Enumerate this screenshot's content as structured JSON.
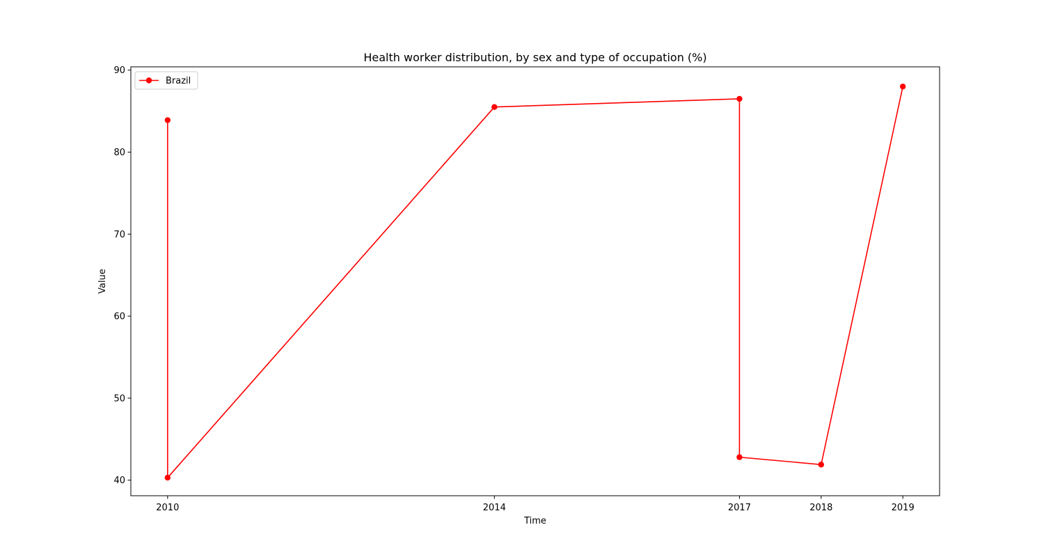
{
  "chart_data": {
    "type": "line",
    "title": "Health worker distribution, by sex and type of occupation (%)",
    "xlabel": "Time",
    "ylabel": "Value",
    "x_ticks": [
      2010,
      2014,
      2017,
      2018,
      2019
    ],
    "y_ticks": [
      40,
      50,
      60,
      70,
      80,
      90
    ],
    "xlim": [
      2009.55,
      2019.45
    ],
    "ylim": [
      38.1,
      90.4
    ],
    "grid": false,
    "legend_position": "top-left",
    "series": [
      {
        "name": "Brazil",
        "color": "#ff0000",
        "marker": "circle",
        "points": [
          {
            "x": 2010,
            "y": 83.9
          },
          {
            "x": 2010,
            "y": 40.3
          },
          {
            "x": 2014,
            "y": 85.5
          },
          {
            "x": 2017,
            "y": 86.5
          },
          {
            "x": 2017,
            "y": 42.8
          },
          {
            "x": 2018,
            "y": 41.9
          },
          {
            "x": 2019,
            "y": 88.0
          }
        ]
      }
    ]
  }
}
